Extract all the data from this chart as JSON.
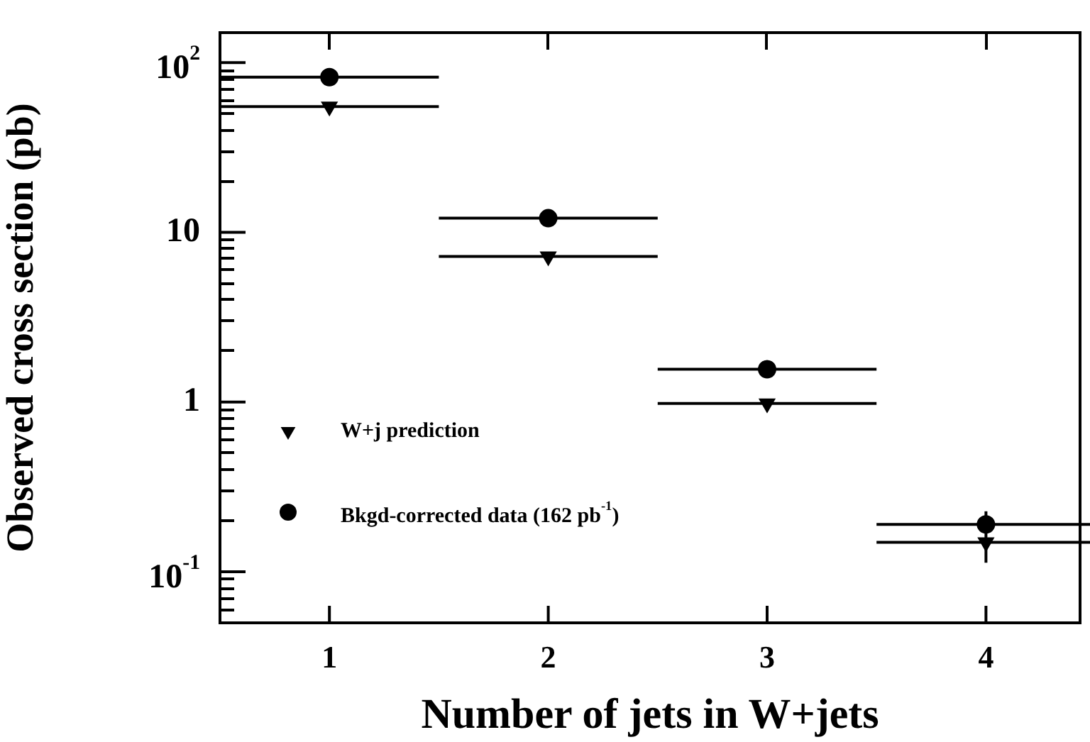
{
  "chart_data": {
    "type": "scatter",
    "xlabel": "Number of jets in W+jets",
    "ylabel": "Observed cross section (pb)",
    "x": [
      1,
      2,
      3,
      4
    ],
    "series": [
      {
        "name": "W+j prediction",
        "color": "#000000",
        "marker": "triangle",
        "values": [
          55,
          7.2,
          0.98,
          0.149
        ],
        "xerrors": [
          0.5,
          0.5,
          0.5,
          0.5
        ]
      },
      {
        "name": "Bkgd-corrected data (162 pb$^{-1}$)",
        "color": "#000000",
        "marker": "circle",
        "values": [
          82,
          12.1,
          1.56,
          0.19
        ],
        "xerrors": [
          0.5,
          0.5,
          0.5,
          0.5
        ],
        "errors": [
          null,
          null,
          null,
          [
            0.113,
            0.227
          ]
        ]
      }
    ],
    "log": "y",
    "xlim": [
      0.5,
      4.43
    ],
    "xticks": [
      1,
      2,
      3,
      4
    ],
    "ylim": [
      0.05,
      150
    ],
    "yticks": [
      {
        "value": 0.1,
        "label": "10$^{-1}$"
      },
      1,
      10,
      {
        "value": 100,
        "label": "10$^{2}$"
      }
    ],
    "legend": "bottom left",
    "grid": false
  }
}
